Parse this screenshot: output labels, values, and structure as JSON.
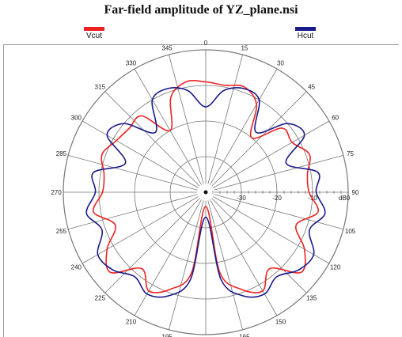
{
  "chart_data": {
    "type": "polar-line",
    "title": "Far-field amplitude of YZ_plane.nsi",
    "angle_ticks": [
      "0",
      "15",
      "30",
      "45",
      "60",
      "75",
      "90",
      "105",
      "120",
      "135",
      "150",
      "165",
      "180",
      "195",
      "210",
      "225",
      "240",
      "255",
      "270",
      "285",
      "300",
      "315",
      "330",
      "345"
    ],
    "radial_ticks": [
      "-30",
      "-20",
      "-10",
      "0"
    ],
    "radial_unit": "dB",
    "r_range": [
      -40,
      0
    ],
    "series": [
      {
        "name": "Vcut",
        "color": "#ee2222",
        "theta": [
          0,
          10,
          20,
          30,
          40,
          50,
          60,
          70,
          80,
          90,
          100,
          110,
          120,
          130,
          140,
          150,
          160,
          170,
          180,
          190,
          200,
          210,
          220,
          230,
          240,
          250,
          260,
          270,
          280,
          290,
          300,
          310,
          320,
          330,
          340,
          350,
          360
        ],
        "r_db": [
          -9,
          -9.5,
          -8.5,
          -11.5,
          -20,
          -12,
          -12,
          -9,
          -11,
          -11,
          -8,
          -13,
          -8,
          -5,
          -12,
          -8,
          -11,
          -17,
          -36,
          -17,
          -11,
          -8,
          -12,
          -5,
          -8,
          -13,
          -8,
          -11,
          -11,
          -9,
          -11,
          -12,
          -12,
          -20,
          -11.5,
          -8.5,
          -9
        ]
      },
      {
        "name": "Hcut",
        "color": "#1a1a8c",
        "theta": [
          0,
          10,
          20,
          30,
          40,
          50,
          60,
          70,
          80,
          90,
          100,
          110,
          120,
          130,
          140,
          150,
          160,
          170,
          180,
          190,
          200,
          210,
          220,
          230,
          240,
          250,
          260,
          270,
          280,
          290,
          300,
          310,
          320,
          330,
          340,
          350,
          360
        ],
        "r_db": [
          -16,
          -11,
          -9,
          -10,
          -18,
          -10,
          -8,
          -16,
          -8,
          -9,
          -6,
          -9,
          -5,
          -6,
          -9,
          -7,
          -9,
          -15,
          -33,
          -15,
          -9,
          -7,
          -9,
          -6,
          -5,
          -9,
          -6,
          -9,
          -8,
          -16,
          -8,
          -10,
          -18,
          -10,
          -9,
          -11,
          -16
        ]
      }
    ]
  }
}
